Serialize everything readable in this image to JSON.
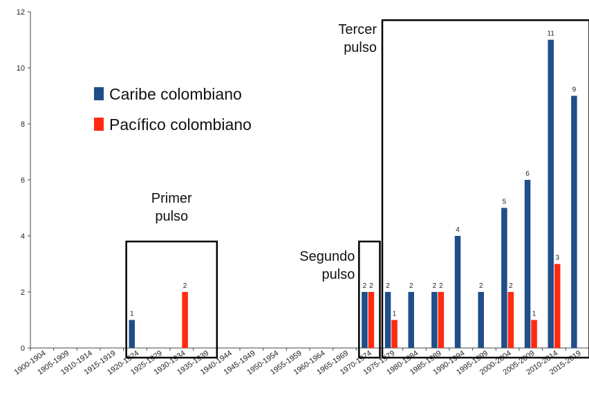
{
  "chart_data": {
    "type": "bar",
    "categories": [
      "1900-1904",
      "1905-1909",
      "1910-1914",
      "1915-1919",
      "1920-1924",
      "1925-1929",
      "1930-1934",
      "1935-1939",
      "1940-1944",
      "1945-1949",
      "1950-1954",
      "1955-1959",
      "1960-1964",
      "1965-1969",
      "1970-1974",
      "1975-1979",
      "1980-1984",
      "1985-1989",
      "1990-1994",
      "1995-1999",
      "2000-2004",
      "2005-2009",
      "2010-2014",
      "2015-2019"
    ],
    "series": [
      {
        "name": "Caribe colombiano",
        "color": "#1f4e89",
        "values": [
          0,
          0,
          0,
          0,
          1,
          0,
          0,
          0,
          0,
          0,
          0,
          0,
          0,
          0,
          2,
          2,
          2,
          2,
          4,
          2,
          5,
          6,
          11,
          9
        ]
      },
      {
        "name": "Pacífico colombiano",
        "color": "#ff2a10",
        "values": [
          0,
          0,
          0,
          0,
          0,
          0,
          2,
          0,
          0,
          0,
          0,
          0,
          0,
          0,
          2,
          1,
          0,
          2,
          0,
          0,
          2,
          1,
          3,
          0
        ]
      }
    ],
    "ylim": [
      0,
      12
    ],
    "yticks": [
      0,
      2,
      4,
      6,
      8,
      10,
      12
    ],
    "grid": false,
    "legend": "top-left",
    "annotations": [
      {
        "id": "primer",
        "lines": [
          "Primer",
          "pulso"
        ],
        "box_categories": [
          "1920-1924",
          "1935-1939"
        ],
        "box_top": 3.8
      },
      {
        "id": "segundo",
        "lines": [
          "Segundo",
          "pulso"
        ],
        "box_categories": [
          "1970-1974",
          "1970-1974"
        ],
        "box_top": 3.8
      },
      {
        "id": "tercer",
        "lines": [
          "Tercer",
          "pulso"
        ],
        "box_categories": [
          "1975-1979",
          "2015-2019"
        ],
        "box_top": 11.7
      }
    ]
  }
}
